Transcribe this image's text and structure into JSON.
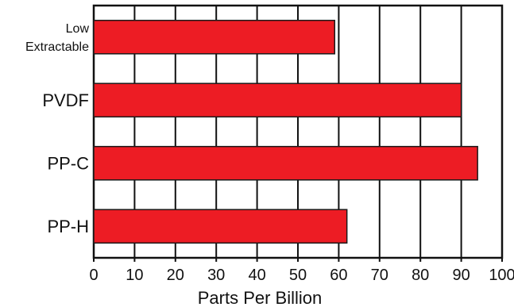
{
  "chart_data": {
    "type": "bar",
    "orientation": "horizontal",
    "categories": [
      [
        "Low",
        "Extractable"
      ],
      [
        "PVDF"
      ],
      [
        "PP-C"
      ],
      [
        "PP-H"
      ]
    ],
    "values": [
      59,
      90,
      94,
      62
    ],
    "xlabel": "Parts Per Billion",
    "ylabel": "",
    "title": "",
    "xlim": [
      0,
      100
    ],
    "xticks": [
      0,
      10,
      20,
      30,
      40,
      50,
      60,
      70,
      80,
      90,
      100
    ],
    "grid": true,
    "legend": "none",
    "colors": {
      "bar": "#ed1c24",
      "bar_stroke": "#1a1a1a",
      "grid": "#111111"
    }
  }
}
